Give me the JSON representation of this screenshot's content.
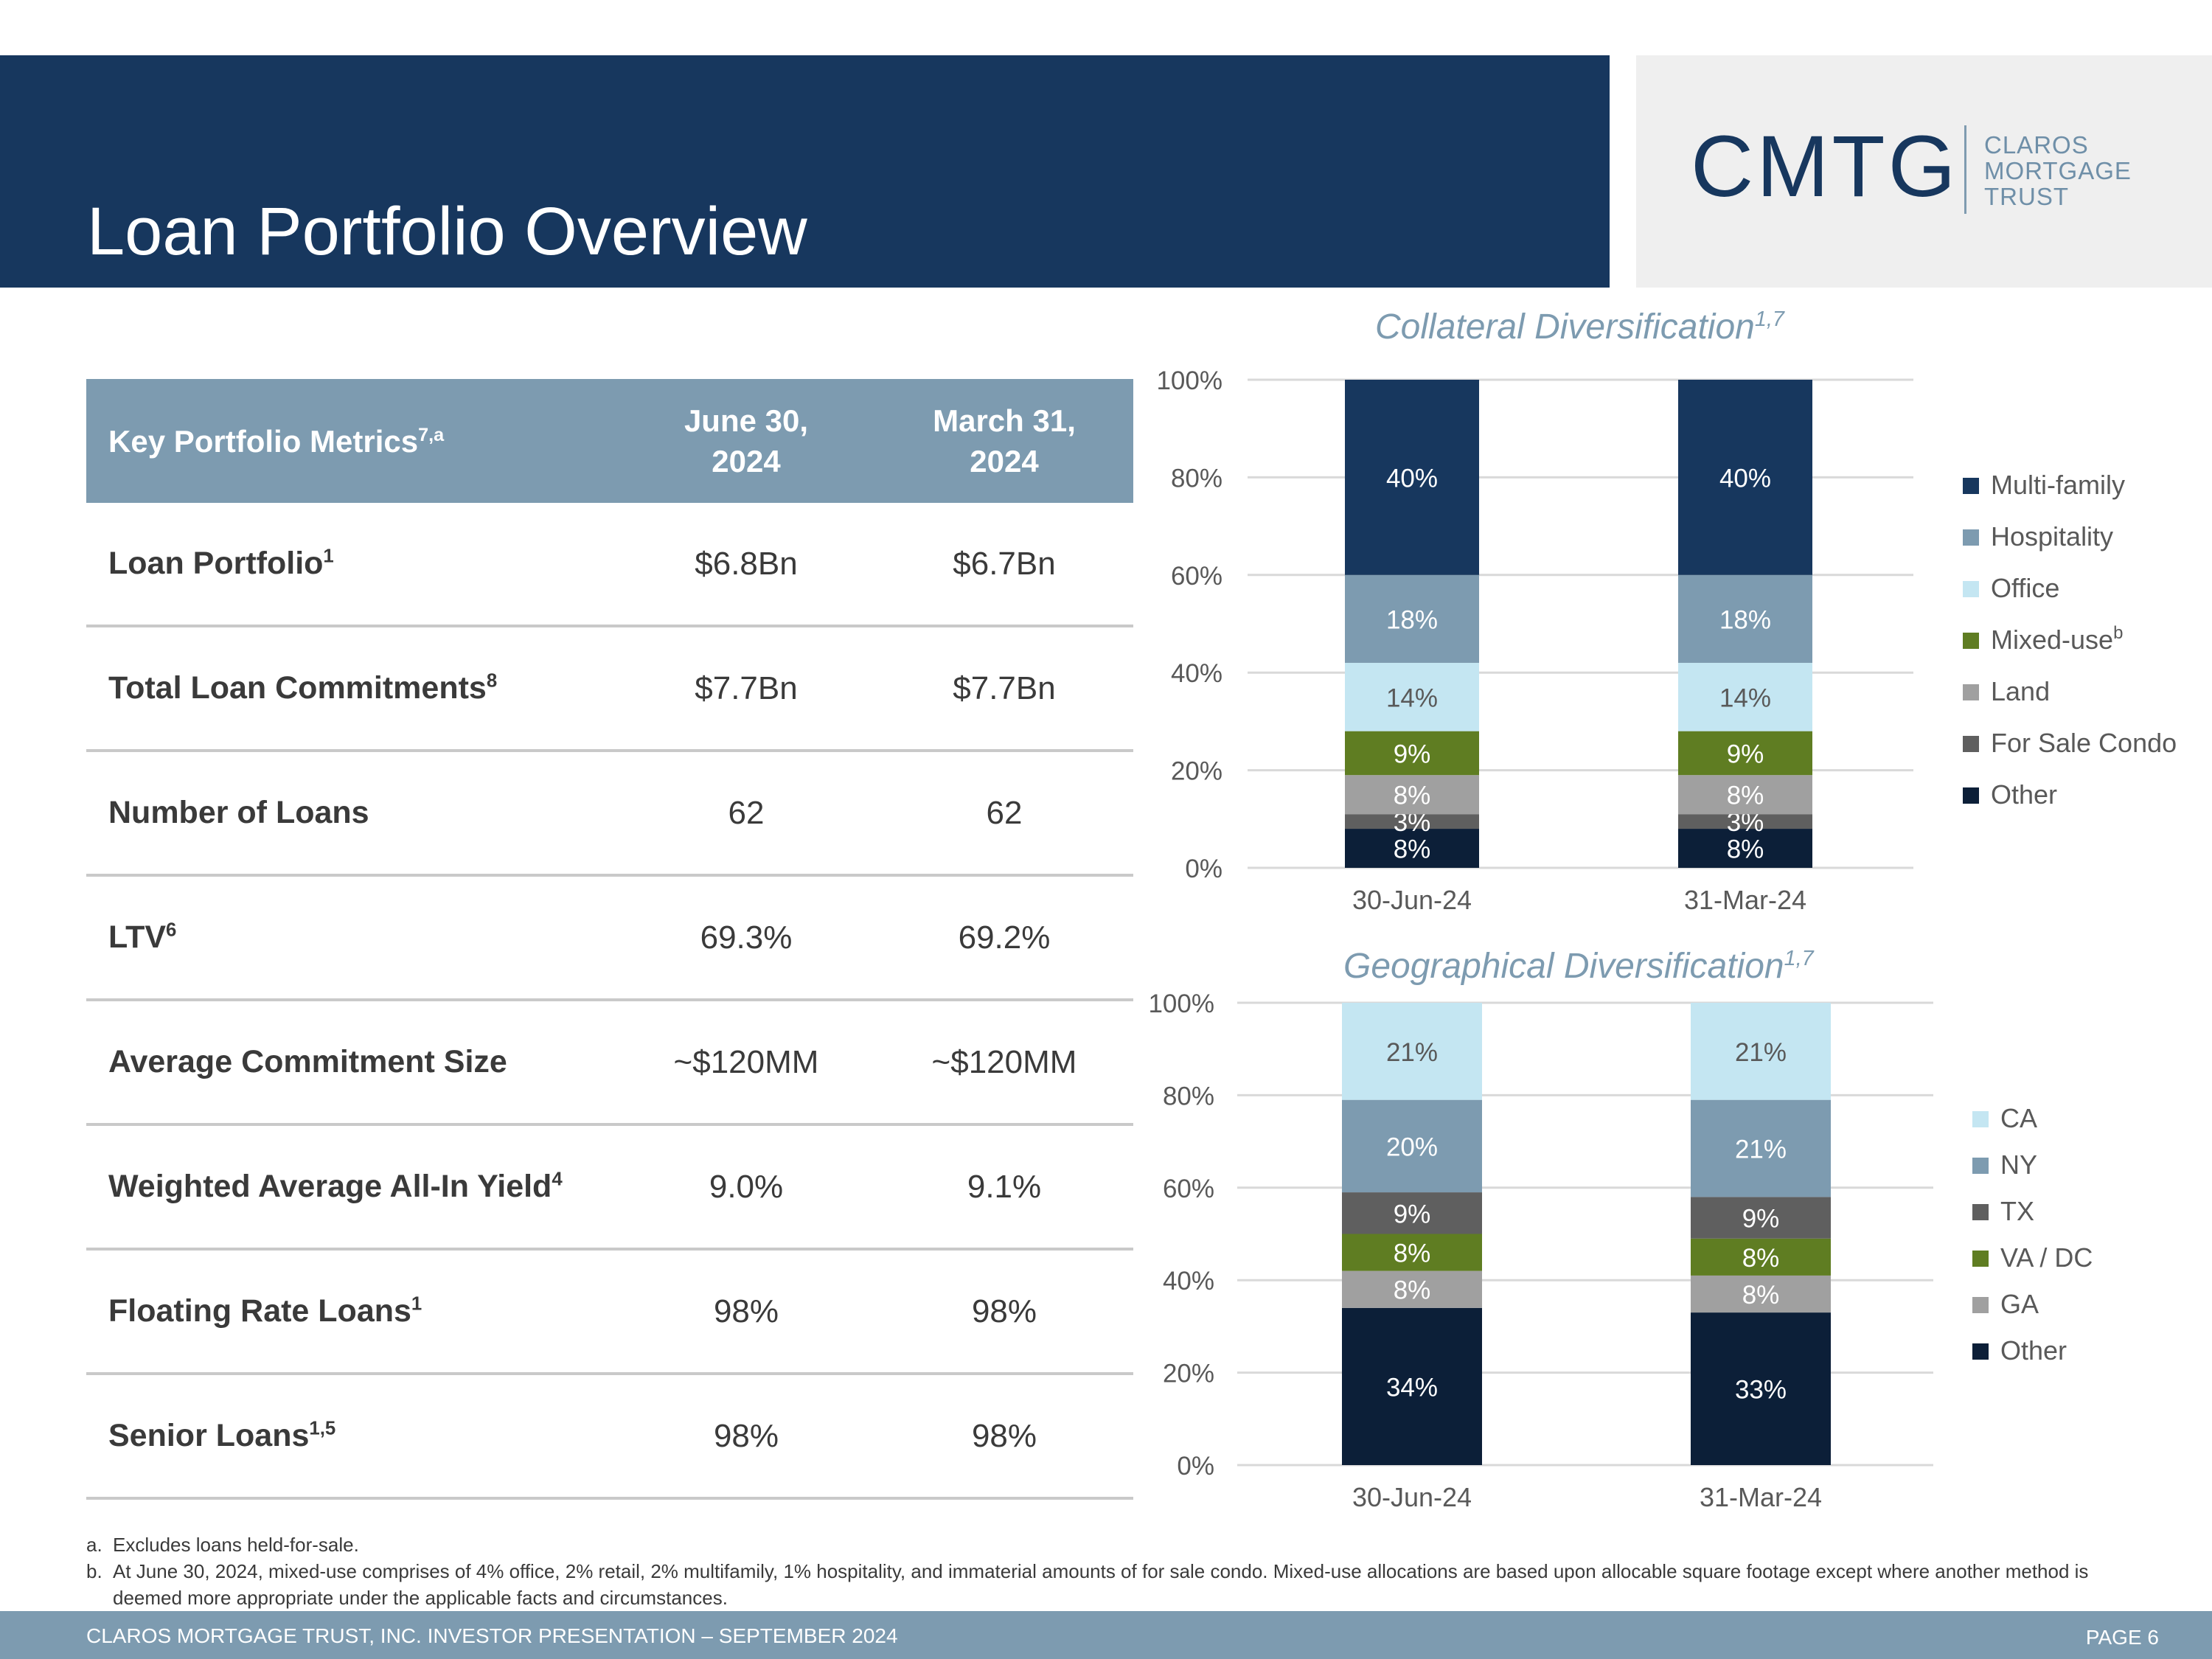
{
  "header": {
    "title": "Loan Portfolio Overview",
    "logo_mark": "CMTG",
    "logo_words": [
      "CLAROS",
      "MORTGAGE",
      "TRUST"
    ]
  },
  "table": {
    "header_label": "Key Portfolio Metrics",
    "header_label_sup": "7,a",
    "col1": [
      "June 30,",
      "2024"
    ],
    "col2": [
      "March 31,",
      "2024"
    ],
    "rows": [
      {
        "label": "Loan Portfolio",
        "sup": "1",
        "v1": "$6.8Bn",
        "v2": "$6.7Bn"
      },
      {
        "label": "Total Loan Commitments",
        "sup": "8",
        "v1": "$7.7Bn",
        "v2": "$7.7Bn"
      },
      {
        "label": "Number of Loans",
        "sup": "",
        "v1": "62",
        "v2": "62"
      },
      {
        "label": "LTV",
        "sup": "6",
        "v1": "69.3%",
        "v2": "69.2%"
      },
      {
        "label": "Average Commitment Size",
        "sup": "",
        "v1": "~$120MM",
        "v2": "~$120MM"
      },
      {
        "label": "Weighted Average All-In Yield",
        "sup": "4",
        "v1": "9.0%",
        "v2": "9.1%"
      },
      {
        "label": "Floating Rate Loans",
        "sup": "1",
        "v1": "98%",
        "v2": "98%"
      },
      {
        "label": "Senior Loans",
        "sup": "1,5",
        "v1": "98%",
        "v2": "98%"
      }
    ]
  },
  "chart_data": [
    {
      "type": "bar",
      "stacked": true,
      "title": "Collateral Diversification",
      "title_sup": "1,7",
      "categories": [
        "30-Jun-24",
        "31-Mar-24"
      ],
      "ylim": [
        0,
        100
      ],
      "yticks": [
        "0%",
        "20%",
        "40%",
        "60%",
        "80%",
        "100%"
      ],
      "series": [
        {
          "name": "Other",
          "values": [
            8,
            8
          ],
          "color": "#0c1f38",
          "label_color": "#ffffff"
        },
        {
          "name": "For Sale Condo",
          "values": [
            3,
            3
          ],
          "color": "#5f5f5f",
          "label_color": "#ffffff"
        },
        {
          "name": "Land",
          "values": [
            8,
            8
          ],
          "color": "#a0a0a0",
          "label_color": "#ffffff"
        },
        {
          "name": "Mixed-use",
          "name_sup": "b",
          "values": [
            9,
            9
          ],
          "color": "#5f7d22",
          "label_color": "#ffffff"
        },
        {
          "name": "Office",
          "values": [
            14,
            14
          ],
          "color": "#c4e6f2",
          "label_color": "#595959"
        },
        {
          "name": "Hospitality",
          "values": [
            18,
            18
          ],
          "color": "#7d9bb0",
          "label_color": "#ffffff"
        },
        {
          "name": "Multi-family",
          "values": [
            40,
            40
          ],
          "color": "#17375e",
          "label_color": "#ffffff"
        }
      ],
      "legend_order": [
        "Multi-family",
        "Hospitality",
        "Office",
        "Mixed-use",
        "Land",
        "For Sale Condo",
        "Other"
      ]
    },
    {
      "type": "bar",
      "stacked": true,
      "title": "Geographical Diversification",
      "title_sup": "1,7",
      "categories": [
        "30-Jun-24",
        "31-Mar-24"
      ],
      "ylim": [
        0,
        100
      ],
      "yticks": [
        "0%",
        "20%",
        "40%",
        "60%",
        "80%",
        "100%"
      ],
      "series": [
        {
          "name": "Other",
          "values": [
            34,
            33
          ],
          "color": "#0c1f38",
          "label_color": "#ffffff"
        },
        {
          "name": "GA",
          "values": [
            8,
            8
          ],
          "color": "#a0a0a0",
          "label_color": "#ffffff"
        },
        {
          "name": "VA / DC",
          "values": [
            8,
            8
          ],
          "color": "#5f7d22",
          "label_color": "#ffffff"
        },
        {
          "name": "TX",
          "values": [
            9,
            9
          ],
          "color": "#5f5f5f",
          "label_color": "#ffffff"
        },
        {
          "name": "NY",
          "values": [
            20,
            21
          ],
          "color": "#7d9bb0",
          "label_color": "#ffffff"
        },
        {
          "name": "CA",
          "values": [
            21,
            21
          ],
          "color": "#c4e6f2",
          "label_color": "#595959"
        }
      ],
      "legend_order": [
        "CA",
        "NY",
        "TX",
        "VA / DC",
        "GA",
        "Other"
      ]
    }
  ],
  "footnotes": [
    {
      "mark": "a.",
      "text": "Excludes loans held-for-sale."
    },
    {
      "mark": "b.",
      "text": "At June 30, 2024, mixed-use comprises of 4% office, 2% retail, 2% multifamily, 1% hospitality, and immaterial amounts of for sale condo. Mixed-use allocations are based upon allocable square footage except where another method is deemed more appropriate under the applicable facts and circumstances."
    }
  ],
  "footer": {
    "text": "CLAROS MORTGAGE TRUST, INC. INVESTOR PRESENTATION – SEPTEMBER 2024",
    "page": "PAGE 6"
  }
}
